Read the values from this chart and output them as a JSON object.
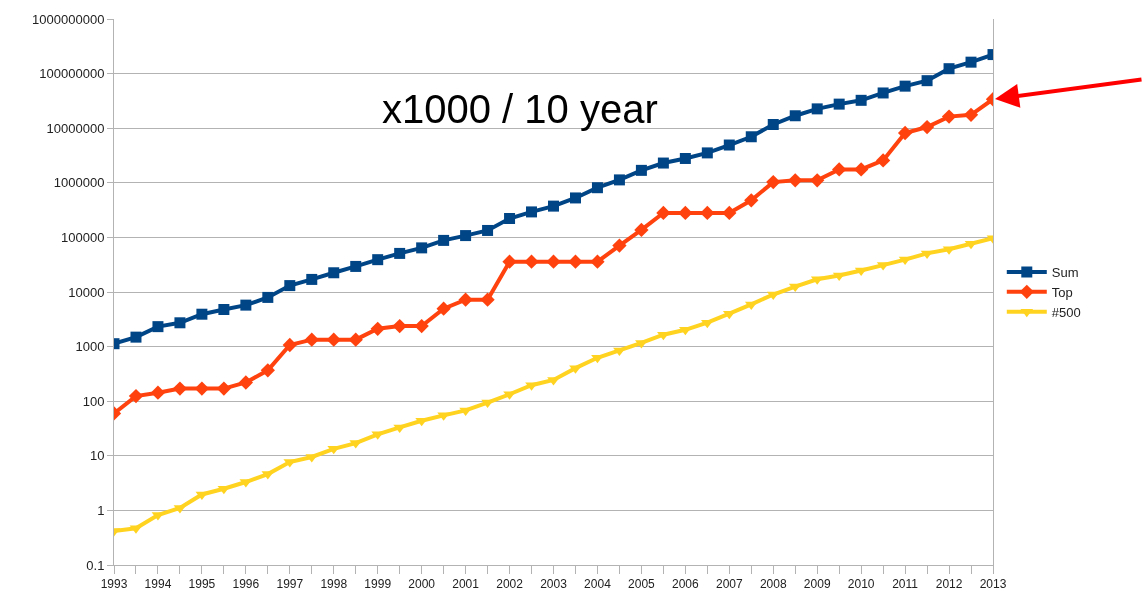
{
  "chart_data": {
    "type": "line",
    "x": [
      1993,
      1993.5,
      1994,
      1994.5,
      1995,
      1995.5,
      1996,
      1996.5,
      1997,
      1997.5,
      1998,
      1998.5,
      1999,
      1999.5,
      2000,
      2000.5,
      2001,
      2001.5,
      2002,
      2002.5,
      2003,
      2003.5,
      2004,
      2004.5,
      2005,
      2005.5,
      2006,
      2006.5,
      2007,
      2007.5,
      2008,
      2008.5,
      2009,
      2009.5,
      2010,
      2010.5,
      2011,
      2011.5,
      2012,
      2012.5,
      2013
    ],
    "series": [
      {
        "name": "Sum",
        "color": "#004586",
        "marker": "square",
        "values": [
          1130,
          1490,
          2320,
          2730,
          3920,
          4780,
          5750,
          7960,
          13100,
          17000,
          22500,
          29400,
          39100,
          50900,
          64300,
          88100,
          108000,
          134000,
          222000,
          293000,
          374000,
          528000,
          813000,
          1130000,
          1690000,
          2300000,
          2790000,
          3530000,
          4920000,
          6970000,
          11700000,
          16900000,
          22600000,
          27600000,
          32400000,
          44200000,
          58900000,
          74200000,
          123000000,
          162000000,
          223000000
        ]
      },
      {
        "name": "Top",
        "color": "#ff420e",
        "marker": "diamond",
        "values": [
          59.7,
          124,
          143,
          170,
          170,
          170,
          220,
          368,
          1070,
          1340,
          1340,
          1340,
          2120,
          2380,
          2380,
          4940,
          7230,
          7230,
          35900,
          35900,
          35900,
          35900,
          35900,
          70700,
          137000,
          281000,
          281000,
          281000,
          281000,
          478000,
          1030000,
          1110000,
          1110000,
          1760000,
          1760000,
          2570000,
          8160000,
          10500000,
          16300000,
          17600000,
          33900000
        ]
      },
      {
        "name": "#500",
        "color": "#ffd320",
        "marker": "triangle",
        "values": [
          0.42,
          0.47,
          0.82,
          1.11,
          1.96,
          2.49,
          3.31,
          4.62,
          7.67,
          9.51,
          13.4,
          17.1,
          24.7,
          33.1,
          43.8,
          55.1,
          67.8,
          94.3,
          134,
          196,
          245,
          403,
          624,
          851,
          1170,
          1650,
          2030,
          2740,
          4010,
          5930,
          9000,
          12600,
          17100,
          20100,
          24700,
          31100,
          39200,
          50900,
          60800,
          76500,
          96600
        ]
      }
    ],
    "log": "y",
    "xlim": [
      1993,
      2013
    ],
    "xticks": [
      1993,
      1994,
      1995,
      1996,
      1997,
      1998,
      1999,
      2000,
      2001,
      2002,
      2003,
      2004,
      2005,
      2006,
      2007,
      2008,
      2009,
      2010,
      2011,
      2012,
      2013
    ],
    "ylim": [
      0.1,
      1000000000
    ],
    "yticks": [
      0.1,
      1,
      10,
      100,
      1000,
      10000,
      100000,
      1000000,
      10000000,
      100000000,
      1000000000
    ],
    "grid": "y",
    "legend": "right",
    "annotations": [
      "x1000 / 10 year"
    ]
  }
}
